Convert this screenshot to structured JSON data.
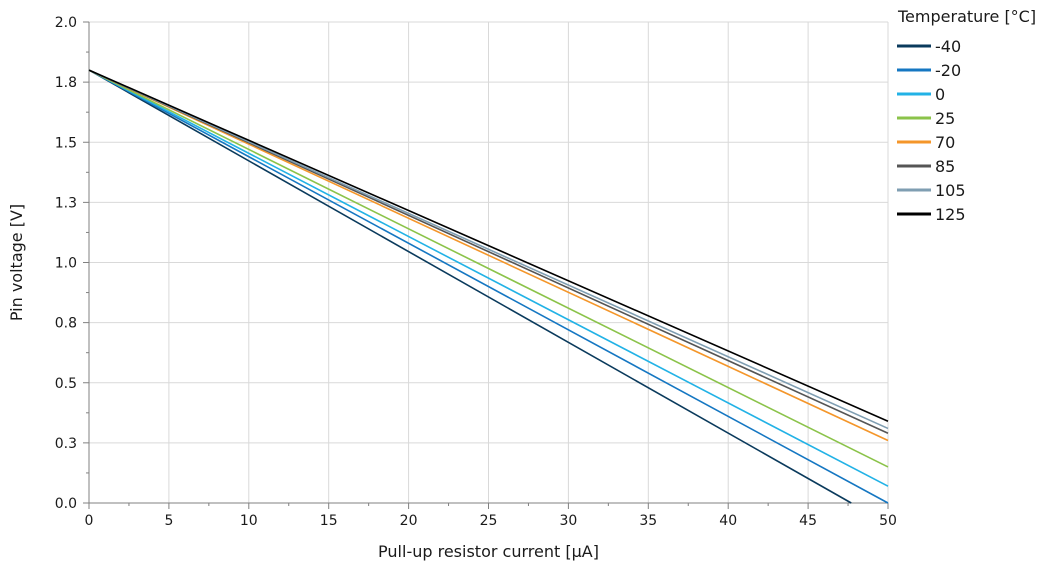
{
  "chart_data": {
    "type": "line",
    "title": "",
    "xlabel": "Pull-up resistor current [µA]",
    "ylabel": "Pin voltage [V]",
    "xlim": [
      0,
      50
    ],
    "ylim": [
      0,
      2.0
    ],
    "x_ticks": [
      0,
      5,
      10,
      15,
      20,
      25,
      30,
      35,
      40,
      45,
      50
    ],
    "x_tick_labels": [
      "0",
      "5",
      "10",
      "15",
      "20",
      "25",
      "30",
      "35",
      "40",
      "45",
      "50"
    ],
    "y_ticks": [
      0,
      0.25,
      0.5,
      0.75,
      1.0,
      1.25,
      1.5,
      1.75,
      2.0
    ],
    "y_tick_labels": [
      "0.0",
      "0.3",
      "0.5",
      "0.8",
      "1.0",
      "1.3",
      "1.5",
      "1.8",
      "2.0"
    ],
    "grid": true,
    "legend": {
      "title": "Temperature [°C]",
      "placement": "right"
    },
    "series": [
      {
        "name": "-40",
        "color": "#0a3a5c",
        "points": [
          [
            0,
            1.8
          ],
          [
            47.7,
            0.0
          ]
        ]
      },
      {
        "name": "-20",
        "color": "#1577c2",
        "points": [
          [
            0,
            1.8
          ],
          [
            50,
            0.0
          ]
        ]
      },
      {
        "name": "0",
        "color": "#22b2e6",
        "points": [
          [
            0,
            1.8
          ],
          [
            50,
            0.07
          ]
        ]
      },
      {
        "name": "25",
        "color": "#8bc34a",
        "points": [
          [
            0,
            1.8
          ],
          [
            50,
            0.15
          ]
        ]
      },
      {
        "name": "70",
        "color": "#f4962a",
        "points": [
          [
            0,
            1.8
          ],
          [
            50,
            0.26
          ]
        ]
      },
      {
        "name": "85",
        "color": "#555555",
        "points": [
          [
            0,
            1.8
          ],
          [
            50,
            0.29
          ]
        ]
      },
      {
        "name": "105",
        "color": "#7f9eb2",
        "points": [
          [
            0,
            1.8
          ],
          [
            50,
            0.31
          ]
        ]
      },
      {
        "name": "125",
        "color": "#000000",
        "points": [
          [
            0,
            1.8
          ],
          [
            50,
            0.34
          ]
        ]
      }
    ]
  }
}
